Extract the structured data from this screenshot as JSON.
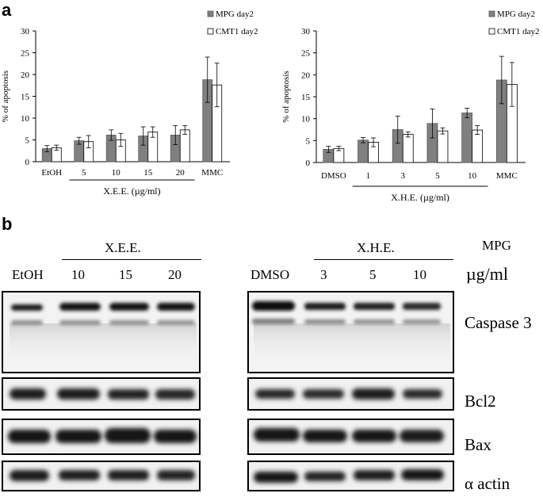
{
  "panel_a_label": "a",
  "panel_b_label": "b",
  "chart_data": [
    {
      "type": "bar",
      "ylabel": "% of apoptosis",
      "xlabel": "X.E.E. (µg/ml)",
      "ylim": [
        0,
        30
      ],
      "yticks": [
        "0",
        "5",
        "10",
        "15",
        "20",
        "25",
        "30"
      ],
      "categories": [
        "EtOH",
        "5",
        "10",
        "15",
        "20",
        "MMC"
      ],
      "bracket_categories": [
        "5",
        "10",
        "15",
        "20"
      ],
      "legend_position": "top-right",
      "grid": false,
      "series": [
        {
          "name": "MPG day2",
          "color": "#808080",
          "values": [
            3.0,
            4.8,
            6.1,
            5.9,
            6.1,
            18.8
          ],
          "errors": [
            0.7,
            0.8,
            1.2,
            2.1,
            2.2,
            5.2
          ]
        },
        {
          "name": "CMT1 day2",
          "color": "#ffffff",
          "values": [
            3.2,
            4.6,
            5.0,
            6.8,
            7.3,
            17.6
          ],
          "errors": [
            0.6,
            1.4,
            1.5,
            1.2,
            1.0,
            5.0
          ]
        }
      ]
    },
    {
      "type": "bar",
      "ylabel": "% of apoptosis",
      "xlabel": "X.H.E. (µg/ml)",
      "ylim": [
        0,
        30
      ],
      "yticks": [
        "0",
        "5",
        "10",
        "15",
        "20",
        "25",
        "30"
      ],
      "categories": [
        "DMSO",
        "1",
        "3",
        "5",
        "10",
        "MMC"
      ],
      "bracket_categories": [
        "1",
        "3",
        "5",
        "10"
      ],
      "legend_position": "top-right",
      "grid": false,
      "series": [
        {
          "name": "MPG day2",
          "color": "#808080",
          "values": [
            3.0,
            5.1,
            7.5,
            8.9,
            11.3,
            18.8
          ],
          "errors": [
            0.7,
            0.6,
            3.1,
            3.3,
            1.1,
            5.4
          ]
        },
        {
          "name": "CMT1 day2",
          "color": "#ffffff",
          "values": [
            3.2,
            4.6,
            6.4,
            7.2,
            7.4,
            17.8
          ],
          "errors": [
            0.5,
            1.0,
            0.6,
            0.7,
            1.0,
            5.0
          ]
        }
      ]
    }
  ],
  "western_blot": {
    "cell_line": "MPG",
    "unit": "µg/ml",
    "left_group": {
      "label": "X.E.E.",
      "lanes": [
        "EtOH",
        "10",
        "15",
        "20"
      ]
    },
    "right_group": {
      "label": "X.H.E.",
      "lanes": [
        "DMSO",
        "3",
        "5",
        "10"
      ]
    },
    "proteins": [
      "Caspase 3",
      "Bcl2",
      "Bax",
      "α actin"
    ]
  }
}
